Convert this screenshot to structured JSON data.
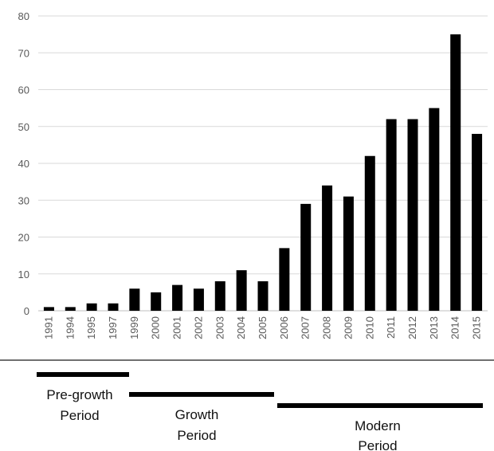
{
  "chart_data": {
    "type": "bar",
    "categories": [
      "1991",
      "1994",
      "1995",
      "1997",
      "1999",
      "2000",
      "2001",
      "2002",
      "2003",
      "2004",
      "2005",
      "2006",
      "2007",
      "2008",
      "2009",
      "2010",
      "2011",
      "2012",
      "2013",
      "2014",
      "2015"
    ],
    "values": [
      1,
      1,
      2,
      2,
      6,
      5,
      7,
      6,
      8,
      11,
      8,
      17,
      29,
      34,
      31,
      42,
      52,
      52,
      55,
      75,
      48
    ],
    "title": "",
    "xlabel": "",
    "ylabel": "",
    "ylim": [
      0,
      80
    ],
    "yticks": [
      0,
      10,
      20,
      30,
      40,
      50,
      60,
      70,
      80
    ],
    "grid": true,
    "bar_color": "#000000",
    "grid_color": "#d9d9d9"
  },
  "periods": [
    {
      "lines": [
        "Pre-growth",
        "Period"
      ],
      "from": "1991",
      "to": "1999"
    },
    {
      "lines": [
        "Growth",
        "Period"
      ],
      "from": "1999",
      "to": "2006"
    },
    {
      "lines": [
        "Modern",
        "Period"
      ],
      "from": "2006",
      "to": "2015"
    }
  ]
}
